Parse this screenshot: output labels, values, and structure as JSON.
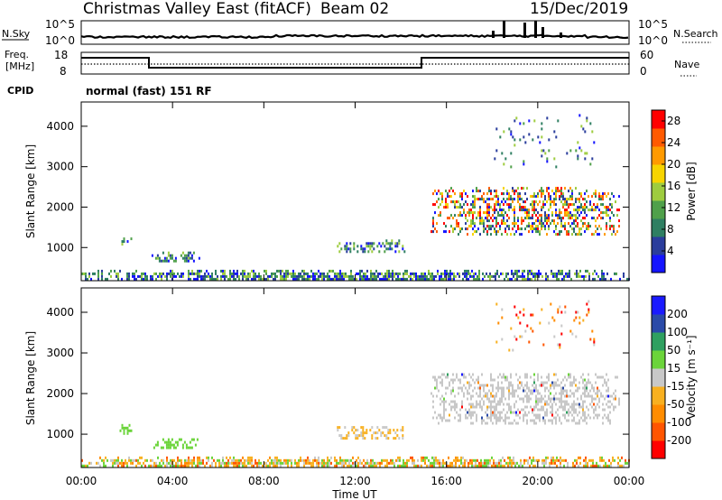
{
  "header": {
    "station": "Christmas Valley East (fitACF)",
    "beam": "Beam 02",
    "date": "15/Dec/2019"
  },
  "top_panels": {
    "nsky_label": "N.Sky",
    "nsky_ticks": [
      "10^5",
      "10^0"
    ],
    "nsearch_label": "N.Search",
    "nsearch_ticks": [
      "10^5",
      "10^0"
    ],
    "freq_label_line1": "Freq.",
    "freq_label_line2": "[MHz]",
    "freq_ticks": [
      "18",
      "8"
    ],
    "nave_label": "Nave",
    "nave_ticks": [
      "60",
      "0"
    ],
    "cpid_label": "CPID",
    "cpid_text": "normal (fast) 151 RF"
  },
  "colors": {
    "power_scale": [
      "#1414ff",
      "#2a3d9c",
      "#2f7f62",
      "#4fa04a",
      "#9ecc3f",
      "#f7d400",
      "#ff9a00",
      "#ff5a00",
      "#ff0000"
    ],
    "velocity_scale": [
      "#ff0000",
      "#ff5500",
      "#ff8c00",
      "#f8b020",
      "#c8c8c8",
      "#6bd43a",
      "#2fa060",
      "#2a4aa8",
      "#1a1aff"
    ],
    "ground_scatter": "#c8c8c8"
  },
  "chart_data": [
    {
      "type": "heatmap",
      "title": "",
      "xlabel": "Time UT",
      "ylabel": "Slant Range [km]",
      "x_ticks": [
        "00:00",
        "04:00",
        "08:00",
        "12:00",
        "16:00",
        "20:00",
        "00:00"
      ],
      "xlim_hours": [
        0,
        24
      ],
      "ylim": [
        180,
        4600
      ],
      "y_ticks": [
        1000,
        2000,
        3000,
        4000
      ],
      "colorbar": {
        "label": "Power [dB]",
        "range": [
          0,
          30
        ],
        "ticks": [
          4,
          8,
          12,
          16,
          20,
          24,
          28
        ]
      },
      "echo_regions": [
        {
          "t_start": 0.0,
          "t_end": 24.0,
          "range_min": 200,
          "range_max": 450,
          "power_db": [
            2,
            28
          ]
        },
        {
          "t_start": 1.6,
          "t_end": 2.2,
          "range_min": 1050,
          "range_max": 1250,
          "power_db": [
            2,
            8
          ]
        },
        {
          "t_start": 3.0,
          "t_end": 5.2,
          "range_min": 650,
          "range_max": 900,
          "power_db": [
            2,
            8
          ]
        },
        {
          "t_start": 11.2,
          "t_end": 14.2,
          "range_min": 900,
          "range_max": 1200,
          "power_db": [
            4,
            20
          ]
        },
        {
          "t_start": 15.3,
          "t_end": 23.6,
          "range_min": 1300,
          "range_max": 2500,
          "power_db": [
            4,
            28
          ]
        },
        {
          "t_start": 18.0,
          "t_end": 22.5,
          "range_min": 3000,
          "range_max": 4300,
          "power_db": [
            2,
            12
          ]
        }
      ]
    },
    {
      "type": "heatmap",
      "title": "",
      "xlabel": "Time UT",
      "ylabel": "Slant Range [km]",
      "x_ticks": [
        "00:00",
        "04:00",
        "08:00",
        "12:00",
        "16:00",
        "20:00",
        "00:00"
      ],
      "xlim_hours": [
        0,
        24
      ],
      "ylim": [
        180,
        4600
      ],
      "y_ticks": [
        1000,
        2000,
        3000,
        4000
      ],
      "colorbar": {
        "label": "Velocity [m s⁻¹]",
        "bins": [
          "-200",
          "-100",
          "-50",
          "-15",
          "15",
          "50",
          "100",
          "200"
        ],
        "ticks": [
          "-200",
          "-100",
          "-50",
          "-15",
          "15",
          "50",
          "100",
          "200"
        ]
      },
      "echo_regions": [
        {
          "t_start": 0.0,
          "t_end": 24.0,
          "range_min": 200,
          "range_max": 450,
          "velocity": [
            -100,
            50
          ]
        },
        {
          "t_start": 1.6,
          "t_end": 2.2,
          "range_min": 1050,
          "range_max": 1250,
          "velocity": [
            15,
            50
          ]
        },
        {
          "t_start": 3.0,
          "t_end": 5.2,
          "range_min": 650,
          "range_max": 900,
          "velocity": [
            15,
            50
          ]
        },
        {
          "t_start": 11.2,
          "t_end": 14.2,
          "range_min": 900,
          "range_max": 1200,
          "velocity": [
            -50,
            -15
          ]
        },
        {
          "t_start": 15.3,
          "t_end": 23.6,
          "range_min": 1300,
          "range_max": 2500,
          "velocity": [
            -15,
            15
          ]
        },
        {
          "t_start": 18.0,
          "t_end": 22.5,
          "range_min": 3000,
          "range_max": 4300,
          "velocity": [
            -200,
            200
          ]
        }
      ]
    }
  ]
}
